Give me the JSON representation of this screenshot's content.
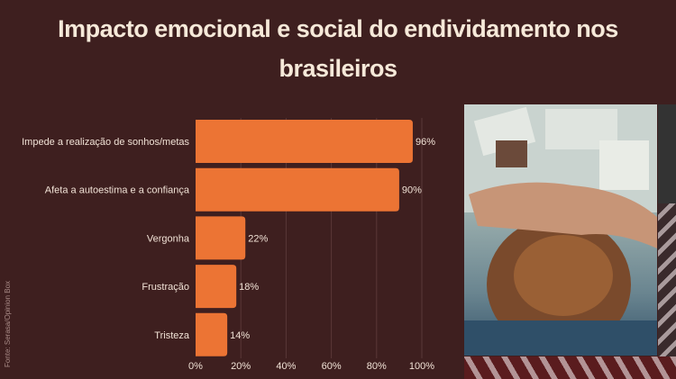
{
  "title": "Impacto emocional e social do endividamento nos brasileiros",
  "source": "Fonte: Serasa/Opinion Box",
  "colors": {
    "background": "#3e1f1f",
    "bar": "#ec7434",
    "title": "#f6e9d9"
  },
  "chart_data": {
    "type": "bar",
    "orientation": "horizontal",
    "title": "Impacto emocional e social do endividamento nos brasileiros",
    "categories": [
      "Impede a realização de sonhos/metas",
      "Afeta a autoestima e a confiança",
      "Vergonha",
      "Frustração",
      "Tristeza"
    ],
    "values": [
      96,
      90,
      22,
      18,
      14
    ],
    "value_labels": [
      "96%",
      "90%",
      "22%",
      "18%",
      "14%"
    ],
    "xlim": [
      0,
      100
    ],
    "xticks": [
      "0%",
      "20%",
      "40%",
      "60%",
      "80%",
      "100%"
    ],
    "grid": true
  }
}
